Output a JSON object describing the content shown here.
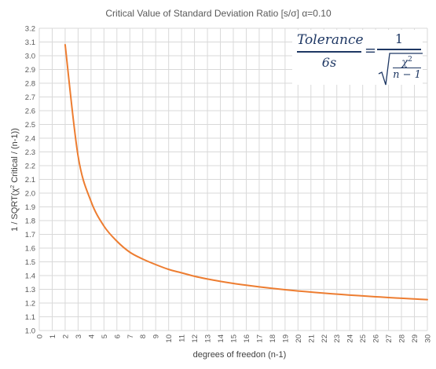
{
  "chart_data": {
    "type": "line",
    "title": "Critical Value of Standard Deviation Ratio [s/σ]  α=0.10",
    "xlabel": "degrees of freedon (n-1)",
    "ylabel_main": "1 / SQRT(χ",
    "ylabel_sup": "2",
    "ylabel_rest": " Critical / (n-1))",
    "xlim": [
      0,
      30
    ],
    "ylim": [
      1.0,
      3.2
    ],
    "x_ticks": [
      0,
      1,
      2,
      3,
      4,
      5,
      6,
      7,
      8,
      9,
      10,
      11,
      12,
      13,
      14,
      15,
      16,
      17,
      18,
      19,
      20,
      21,
      22,
      23,
      24,
      25,
      26,
      27,
      28,
      29,
      30
    ],
    "y_ticks": [
      1.0,
      1.1,
      1.2,
      1.3,
      1.4,
      1.5,
      1.6,
      1.7,
      1.8,
      1.9,
      2.0,
      2.1,
      2.2,
      2.3,
      2.4,
      2.5,
      2.6,
      2.7,
      2.8,
      2.9,
      3.0,
      3.1,
      3.2
    ],
    "grid": true,
    "series": [
      {
        "color": "#ed7d31",
        "x": [
          2,
          3,
          4,
          5,
          6,
          7,
          8,
          9,
          10,
          11,
          12,
          13,
          14,
          15,
          16,
          17,
          18,
          19,
          20,
          21,
          22,
          23,
          24,
          25,
          26,
          27,
          28,
          29,
          30
        ],
        "values": [
          3.08,
          2.27,
          1.94,
          1.76,
          1.65,
          1.57,
          1.52,
          1.48,
          1.445,
          1.42,
          1.395,
          1.375,
          1.358,
          1.343,
          1.33,
          1.318,
          1.307,
          1.297,
          1.288,
          1.28,
          1.272,
          1.265,
          1.258,
          1.252,
          1.246,
          1.24,
          1.235,
          1.23,
          1.225
        ]
      }
    ]
  },
  "formula": {
    "left_numerator": "Tolerance",
    "left_denominator": "6s",
    "equals": "=",
    "right_numerator": "1",
    "chi": "χ",
    "chi_power": "2",
    "n_minus_1": "n − 1"
  }
}
